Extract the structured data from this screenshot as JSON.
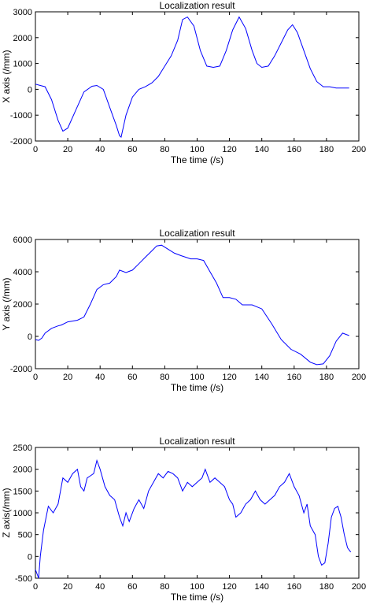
{
  "chart_data": [
    {
      "type": "line",
      "title": "Localization result",
      "xlabel": "The time (/s)",
      "ylabel": "X axis (/mm)",
      "xlim": [
        0,
        200
      ],
      "ylim": [
        -2000,
        3000
      ],
      "xticks": [
        0,
        20,
        40,
        60,
        80,
        100,
        120,
        140,
        160,
        180,
        200
      ],
      "yticks": [
        -2000,
        -1000,
        0,
        1000,
        2000,
        3000
      ],
      "grid": false,
      "series": [
        {
          "color": "#0000ff",
          "x": [
            0,
            3,
            6,
            10,
            14,
            17,
            20,
            25,
            30,
            35,
            38,
            42,
            46,
            50,
            52,
            53,
            56,
            60,
            64,
            68,
            72,
            76,
            80,
            84,
            88,
            91,
            94,
            98,
            102,
            106,
            110,
            114,
            118,
            122,
            126,
            130,
            134,
            137,
            140,
            144,
            148,
            152,
            156,
            159,
            162,
            166,
            170,
            174,
            178,
            182,
            186,
            190,
            194
          ],
          "y": [
            200,
            150,
            100,
            -400,
            -1200,
            -1620,
            -1500,
            -800,
            -100,
            120,
            150,
            0,
            -700,
            -1400,
            -1800,
            -1850,
            -1000,
            -300,
            0,
            100,
            250,
            500,
            900,
            1300,
            1900,
            2700,
            2800,
            2450,
            1500,
            900,
            850,
            900,
            1500,
            2300,
            2800,
            2350,
            1500,
            1000,
            850,
            900,
            1300,
            1800,
            2300,
            2500,
            2200,
            1500,
            800,
            300,
            100,
            100,
            50,
            50,
            50
          ]
        }
      ]
    },
    {
      "type": "line",
      "title": "Localization result",
      "xlabel": "The time (/s)",
      "ylabel": "Y axis (/mm)",
      "xlim": [
        0,
        200
      ],
      "ylim": [
        -2000,
        6000
      ],
      "xticks": [
        0,
        20,
        40,
        60,
        80,
        100,
        120,
        140,
        160,
        180,
        200
      ],
      "yticks": [
        -2000,
        0,
        2000,
        4000,
        6000
      ],
      "grid": false,
      "series": [
        {
          "color": "#0000ff",
          "x": [
            0,
            2,
            4,
            6,
            10,
            14,
            16,
            20,
            26,
            30,
            34,
            38,
            42,
            46,
            50,
            52,
            56,
            60,
            64,
            68,
            72,
            75,
            78,
            82,
            86,
            90,
            96,
            100,
            104,
            108,
            112,
            116,
            120,
            124,
            128,
            134,
            140,
            146,
            152,
            158,
            164,
            170,
            174,
            178,
            182,
            186,
            190,
            194
          ],
          "y": [
            -200,
            -250,
            -100,
            200,
            500,
            650,
            700,
            900,
            1000,
            1200,
            2000,
            2900,
            3200,
            3300,
            3700,
            4100,
            3950,
            4100,
            4500,
            4900,
            5300,
            5600,
            5650,
            5400,
            5150,
            5000,
            4800,
            4800,
            4700,
            4000,
            3300,
            2400,
            2400,
            2300,
            1950,
            1950,
            1700,
            800,
            -200,
            -800,
            -1100,
            -1600,
            -1750,
            -1700,
            -1200,
            -300,
            200,
            50
          ]
        }
      ]
    },
    {
      "type": "line",
      "title": "Localization result",
      "xlabel": "The time (/s)",
      "ylabel": "Z axis(/mm)",
      "xlim": [
        0,
        200
      ],
      "ylim": [
        -500,
        2500
      ],
      "xticks": [
        0,
        20,
        40,
        60,
        80,
        100,
        120,
        140,
        160,
        180,
        200
      ],
      "yticks": [
        -500,
        0,
        500,
        1000,
        1500,
        2000,
        2500
      ],
      "grid": false,
      "series": [
        {
          "color": "#0000ff",
          "x": [
            0,
            2,
            3,
            5,
            8,
            11,
            14,
            17,
            20,
            23,
            26,
            28,
            30,
            32,
            34,
            36,
            38,
            40,
            43,
            46,
            49,
            52,
            54,
            56,
            58,
            61,
            64,
            67,
            70,
            73,
            76,
            79,
            82,
            85,
            88,
            91,
            94,
            97,
            100,
            103,
            105,
            108,
            111,
            114,
            117,
            120,
            122,
            124,
            127,
            130,
            133,
            136,
            139,
            142,
            145,
            148,
            151,
            154,
            157,
            160,
            163,
            166,
            168,
            170,
            173,
            175,
            177,
            179,
            181,
            183,
            185,
            187,
            189,
            191,
            193,
            195
          ],
          "y": [
            -300,
            -500,
            0,
            600,
            1150,
            1000,
            1200,
            1800,
            1700,
            1900,
            2000,
            1600,
            1500,
            1800,
            1850,
            1900,
            2200,
            2000,
            1600,
            1400,
            1300,
            900,
            700,
            1000,
            800,
            1100,
            1300,
            1100,
            1500,
            1700,
            1900,
            1800,
            1950,
            1900,
            1800,
            1500,
            1700,
            1600,
            1700,
            1800,
            2000,
            1700,
            1800,
            1700,
            1600,
            1300,
            1200,
            900,
            1000,
            1200,
            1300,
            1500,
            1300,
            1200,
            1300,
            1400,
            1600,
            1700,
            1900,
            1600,
            1400,
            1000,
            1200,
            700,
            500,
            0,
            -200,
            -150,
            300,
            900,
            1100,
            1150,
            900,
            500,
            200,
            100
          ]
        }
      ]
    }
  ]
}
